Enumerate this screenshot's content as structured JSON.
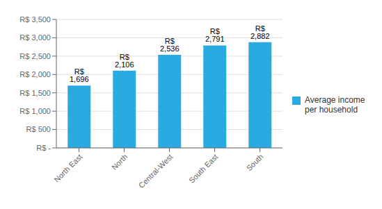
{
  "chart_data": {
    "type": "bar",
    "categories": [
      "North East",
      "North",
      "Central-West",
      "South East",
      "South"
    ],
    "series": [
      {
        "name": "Average income\nper household",
        "color": "#29ABE2",
        "values": [
          1696,
          2106,
          2536,
          2791,
          2882
        ],
        "value_labels": [
          "R$ 1,696",
          "R$ 2,106",
          "R$ 2,536",
          "R$ 2,791",
          "R$ 2,882"
        ]
      }
    ],
    "ylim": [
      0,
      3500
    ],
    "yticks": [
      {
        "value": 0,
        "label": "R$ -"
      },
      {
        "value": 500,
        "label": "R$ 500"
      },
      {
        "value": 1000,
        "label": "R$ 1,000"
      },
      {
        "value": 1500,
        "label": "R$ 1,500"
      },
      {
        "value": 2000,
        "label": "R$ 2,000"
      },
      {
        "value": 2500,
        "label": "R$ 2,500"
      },
      {
        "value": 3000,
        "label": "R$ 3,000"
      },
      {
        "value": 3500,
        "label": "R$ 3,500"
      }
    ],
    "grid": true,
    "legend": "right",
    "data_labels": true
  }
}
